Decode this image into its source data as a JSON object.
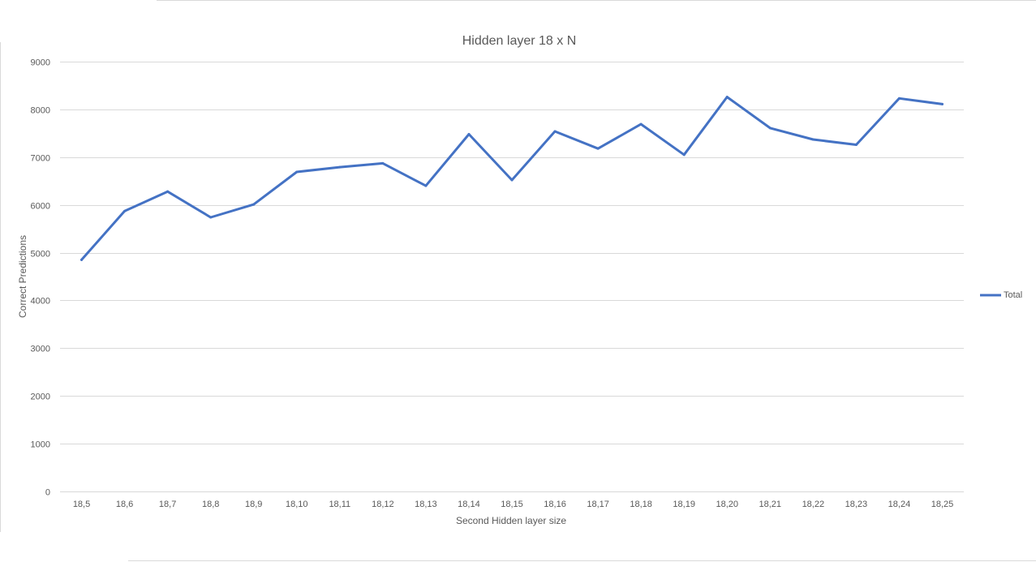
{
  "chart_data": {
    "type": "line",
    "title": "Hidden layer 18 x N",
    "xlabel": "Second Hidden layer size",
    "ylabel": "Correct Predictions",
    "ylim": [
      0,
      9000
    ],
    "yticks": [
      0,
      1000,
      2000,
      3000,
      4000,
      5000,
      6000,
      7000,
      8000,
      9000
    ],
    "grid": true,
    "legend_position": "right",
    "categories": [
      "18,5",
      "18,6",
      "18,7",
      "18,8",
      "18,9",
      "18,10",
      "18,11",
      "18,12",
      "18,13",
      "18,14",
      "18,15",
      "18,16",
      "18,17",
      "18,18",
      "18,19",
      "18,20",
      "18,21",
      "18,22",
      "18,23",
      "18,24",
      "18,25"
    ],
    "series": [
      {
        "name": "Total",
        "color": "#4472c4",
        "values": [
          4850,
          5870,
          6280,
          5740,
          6010,
          6690,
          6790,
          6870,
          6400,
          7480,
          6520,
          7540,
          7180,
          7690,
          7050,
          8260,
          7610,
          7370,
          7260,
          8230,
          8110
        ]
      }
    ]
  }
}
